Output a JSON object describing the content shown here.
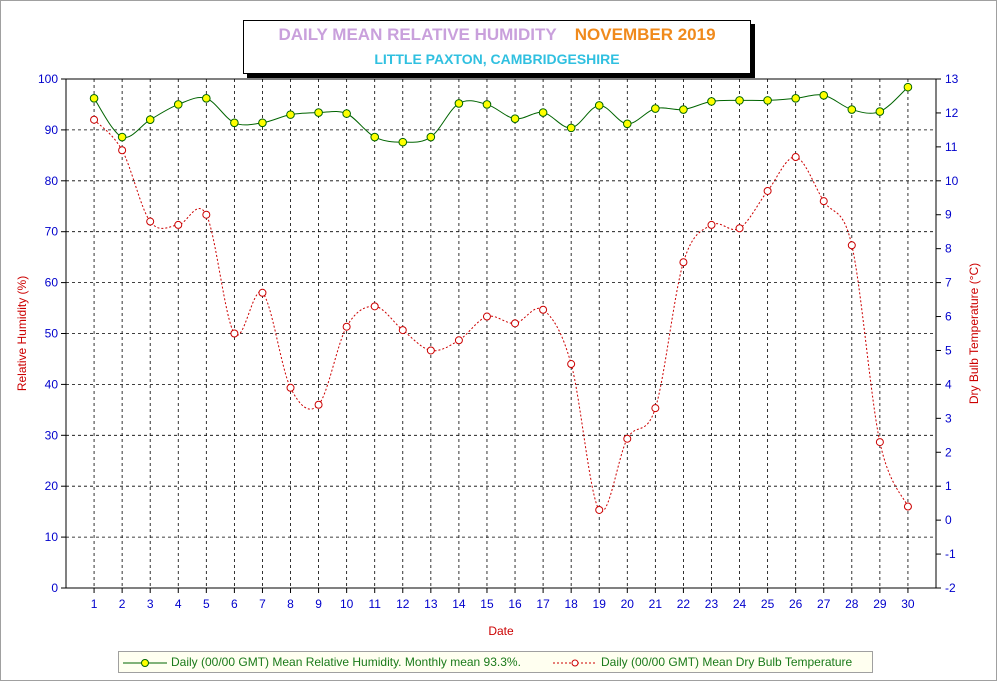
{
  "title": {
    "main": "DAILY MEAN RELATIVE HUMIDITY",
    "period": "NOVEMBER 2019",
    "subtitle": "LITTLE PAXTON, CAMBRIDGESHIRE"
  },
  "colors": {
    "rh_line": "#006400",
    "rh_marker": "#ffff00",
    "temp_line": "#cc0000",
    "axis_left": "#0000cc",
    "axis_right": "#0000cc",
    "label_left": "#cc0000",
    "label_right": "#cc0000"
  },
  "legend": {
    "rh_label": "Daily (00/00 GMT) Mean Relative Humidity. Monthly mean 93.3%.",
    "temp_label": "Daily (00/00 GMT) Mean Dry Bulb Temperature"
  },
  "chart_data": {
    "type": "line",
    "xlabel": "Date",
    "ylabel": "Relative Humidity (%)",
    "y2label": "Dry Bulb Temperature (°C)",
    "x": [
      1,
      2,
      3,
      4,
      5,
      6,
      7,
      8,
      9,
      10,
      11,
      12,
      13,
      14,
      15,
      16,
      17,
      18,
      19,
      20,
      21,
      22,
      23,
      24,
      25,
      26,
      27,
      28,
      29,
      30
    ],
    "xlim": [
      0,
      31
    ],
    "ylim": [
      0,
      100
    ],
    "y2lim": [
      -2,
      13
    ],
    "yticks": [
      0,
      10,
      20,
      30,
      40,
      50,
      60,
      70,
      80,
      90,
      100
    ],
    "y2ticks": [
      -2,
      -1,
      0,
      1,
      2,
      3,
      4,
      5,
      6,
      7,
      8,
      9,
      10,
      11,
      12,
      13
    ],
    "grid": true,
    "legend_position": "bottom",
    "series": [
      {
        "name": "Daily (00/00 GMT) Mean Relative Humidity. Monthly mean 93.3%.",
        "axis": "left",
        "values": [
          96.2,
          88.6,
          92.0,
          95.0,
          96.2,
          91.4,
          91.4,
          93.0,
          93.4,
          93.2,
          88.6,
          87.6,
          88.6,
          95.2,
          95.0,
          92.2,
          93.4,
          90.4,
          94.8,
          91.2,
          94.2,
          94.0,
          95.6,
          95.8,
          95.8,
          96.2,
          96.8,
          94.0,
          93.6,
          98.4
        ]
      },
      {
        "name": "Daily (00/00 GMT) Mean Dry Bulb Temperature",
        "axis": "right",
        "values": [
          11.8,
          10.9,
          8.8,
          8.7,
          9.0,
          5.5,
          6.7,
          3.9,
          3.4,
          5.7,
          6.3,
          5.6,
          5.0,
          5.3,
          6.0,
          5.8,
          6.2,
          4.6,
          0.3,
          2.4,
          3.3,
          7.6,
          8.7,
          8.6,
          9.7,
          10.7,
          9.4,
          8.1,
          2.3,
          0.4
        ]
      }
    ]
  }
}
